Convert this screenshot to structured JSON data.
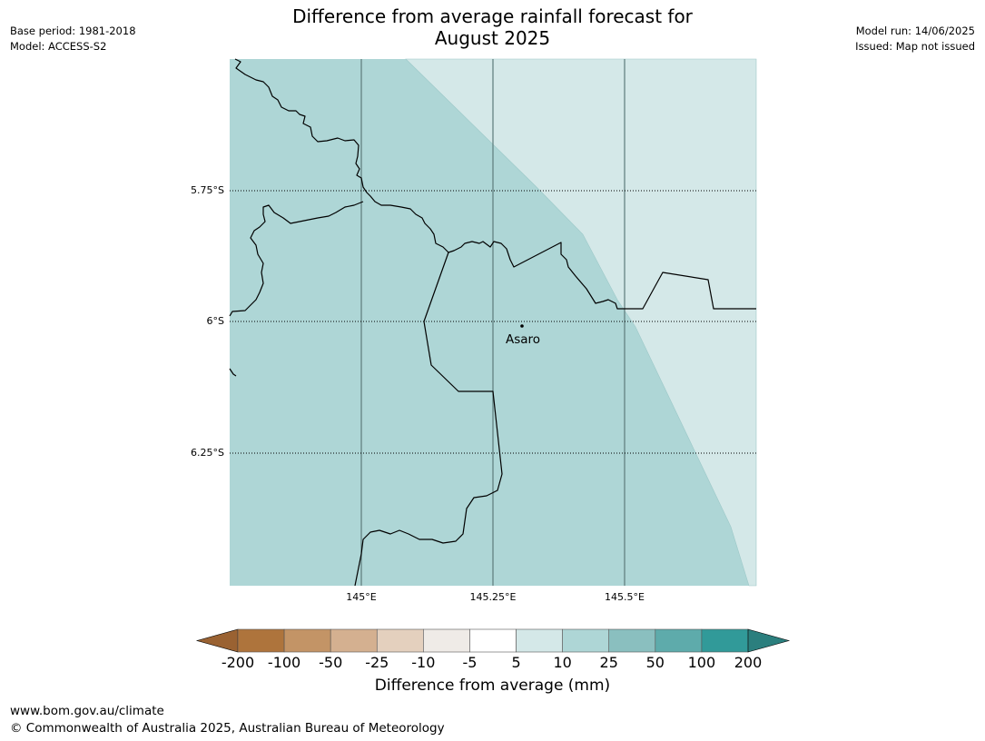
{
  "title_line1": "Difference from average rainfall forecast for",
  "title_line2": "August 2025",
  "meta_left": {
    "base_period": "Base period: 1981-2018",
    "model": "Model: ACCESS-S2"
  },
  "meta_right": {
    "model_run": "Model run: 14/06/2025",
    "issued": "Issued: Map not issued"
  },
  "map": {
    "lat_labels": [
      "5.75°S",
      "6°S",
      "6.25°S"
    ],
    "lon_labels": [
      "145°E",
      "145.25°E",
      "145.5°E"
    ],
    "place": {
      "name": "Asaro"
    },
    "colors": {
      "category_5_10": "#d4e8e8",
      "category_10_25": "#aed6d6"
    }
  },
  "colorbar": {
    "ticks": [
      "-200",
      "-100",
      "-50",
      "-25",
      "-10",
      "-5",
      "5",
      "10",
      "25",
      "50",
      "100",
      "200"
    ],
    "colors": [
      "#9a6232",
      "#ae743c",
      "#c39466",
      "#d4b090",
      "#e4d0be",
      "#efebe7",
      "#ffffff",
      "#d4e8e8",
      "#aed6d6",
      "#8abfbf",
      "#5eabab",
      "#319a99",
      "#2b7f7e"
    ],
    "label": "Difference from average (mm)"
  },
  "footer": {
    "url": "www.bom.gov.au/climate",
    "copyright": "© Commonwealth of Australia 2025, Australian Bureau of Meteorology"
  }
}
